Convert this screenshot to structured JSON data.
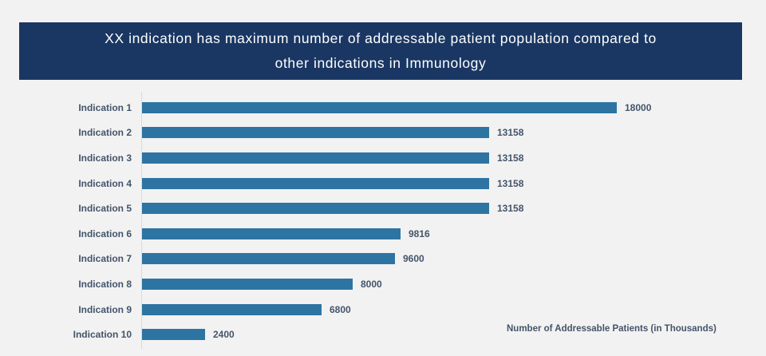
{
  "colors": {
    "page_background": "#F2F2F2",
    "header_background": "#1A3763",
    "header_text": "#FFFFFF",
    "bar_color": "#2E74A2",
    "label_color": "#44546A",
    "axis_line_color": "#D9D9D9"
  },
  "header": {
    "title_line1": "XX indication has maximum number of addressable patient population compared to",
    "title_line2": "other indications in Immunology"
  },
  "chart_data": {
    "type": "bar",
    "orientation": "horizontal",
    "title": "XX indication has maximum number of addressable patient population compared to other indications in Immunology",
    "categories": [
      "Indication 1",
      "Indication 2",
      "Indication 3",
      "Indication 4",
      "Indication 5",
      "Indication 6",
      "Indication 7",
      "Indication 8",
      "Indication 9",
      "Indication 10"
    ],
    "values": [
      18000,
      13158,
      13158,
      13158,
      13158,
      9816,
      9600,
      8000,
      6800,
      2400
    ],
    "xlabel": "Number of Addressable Patients (in Thousands)",
    "ylabel": "",
    "xlim": [
      0,
      18000
    ],
    "grid": false,
    "legend": "none",
    "data_labels": true
  }
}
